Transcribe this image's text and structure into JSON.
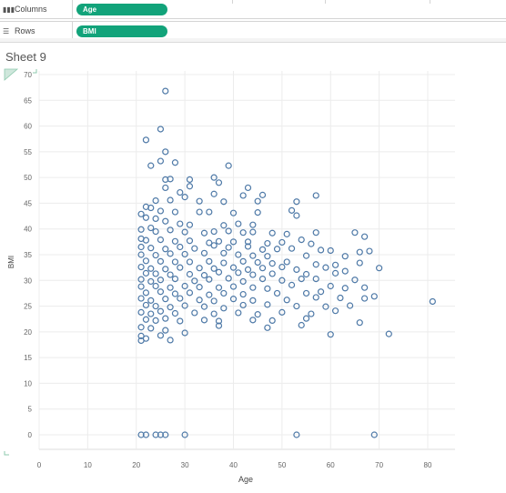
{
  "shelves": {
    "columns": {
      "label": "Columns",
      "icon": "columns-icon",
      "pill": "Age"
    },
    "rows": {
      "label": "Rows",
      "icon": "rows-icon",
      "pill": "BMI"
    }
  },
  "sheet": {
    "title": "Sheet 9"
  },
  "colors": {
    "pill": "#12a37a",
    "marker": "#4e79a7",
    "grid": "#ececec"
  },
  "chart_data": {
    "type": "scatter",
    "title": "",
    "xlabel": "Age",
    "ylabel": "BMI",
    "xlim": [
      0,
      85
    ],
    "ylim": [
      -3,
      70
    ],
    "xticks": [
      0,
      10,
      20,
      30,
      40,
      50,
      60,
      70,
      80
    ],
    "yticks": [
      0,
      5,
      10,
      15,
      20,
      25,
      30,
      35,
      40,
      45,
      50,
      55,
      60,
      65,
      70
    ],
    "grid": true,
    "marker": "open-circle",
    "series": [
      {
        "points": [
          [
            21,
            0
          ],
          [
            22,
            0
          ],
          [
            24,
            0
          ],
          [
            25,
            0
          ],
          [
            26,
            0
          ],
          [
            30,
            0
          ],
          [
            53,
            0
          ],
          [
            69,
            0
          ],
          [
            26,
            66.8
          ],
          [
            25,
            59.4
          ],
          [
            22,
            57.3
          ],
          [
            26,
            55
          ],
          [
            25,
            53.2
          ],
          [
            28,
            52.9
          ],
          [
            23,
            52.3
          ],
          [
            39,
            52.3
          ],
          [
            26,
            49.6
          ],
          [
            27,
            49.7
          ],
          [
            31,
            49.6
          ],
          [
            36,
            50
          ],
          [
            37,
            49
          ],
          [
            31,
            48.3
          ],
          [
            43,
            48
          ],
          [
            26,
            48
          ],
          [
            29,
            47.1
          ],
          [
            30,
            46.2
          ],
          [
            36,
            46.8
          ],
          [
            42,
            46.5
          ],
          [
            46,
            46.6
          ],
          [
            57,
            46.5
          ],
          [
            24,
            45.5
          ],
          [
            27,
            45.6
          ],
          [
            33,
            45.4
          ],
          [
            38,
            45.3
          ],
          [
            45,
            45.4
          ],
          [
            53,
            45.3
          ],
          [
            22,
            44.3
          ],
          [
            23,
            44.1
          ],
          [
            25,
            43.5
          ],
          [
            28,
            43.3
          ],
          [
            33,
            43.3
          ],
          [
            35,
            43.3
          ],
          [
            40,
            43.1
          ],
          [
            45,
            43.2
          ],
          [
            52,
            43.6
          ],
          [
            21,
            42.9
          ],
          [
            22,
            42.2
          ],
          [
            24,
            42
          ],
          [
            26,
            41.5
          ],
          [
            29,
            41
          ],
          [
            31,
            40.8
          ],
          [
            38,
            40.7
          ],
          [
            41,
            41
          ],
          [
            44,
            40.8
          ],
          [
            53,
            42.6
          ],
          [
            21,
            39.9
          ],
          [
            23,
            40.2
          ],
          [
            24,
            39.5
          ],
          [
            27,
            39.8
          ],
          [
            30,
            39.4
          ],
          [
            34,
            39.2
          ],
          [
            36,
            39.5
          ],
          [
            39,
            39.6
          ],
          [
            42,
            39.3
          ],
          [
            44,
            39.4
          ],
          [
            48,
            39.2
          ],
          [
            51,
            39
          ],
          [
            57,
            39.3
          ],
          [
            65,
            39.3
          ],
          [
            67,
            38.5
          ],
          [
            21,
            38.1
          ],
          [
            22,
            37.8
          ],
          [
            25,
            37.9
          ],
          [
            28,
            37.6
          ],
          [
            31,
            37.7
          ],
          [
            35,
            37.3
          ],
          [
            37,
            37.6
          ],
          [
            40,
            37.5
          ],
          [
            43,
            37.5
          ],
          [
            47,
            37.2
          ],
          [
            50,
            37.4
          ],
          [
            54,
            37.9
          ],
          [
            56,
            37.1
          ],
          [
            21,
            36.5
          ],
          [
            23,
            36.3
          ],
          [
            26,
            36.1
          ],
          [
            29,
            36.5
          ],
          [
            32,
            36.2
          ],
          [
            36,
            36.8
          ],
          [
            39,
            36.4
          ],
          [
            43,
            36.6
          ],
          [
            46,
            36
          ],
          [
            49,
            36.1
          ],
          [
            52,
            36.2
          ],
          [
            58,
            35.9
          ],
          [
            60,
            35.8
          ],
          [
            66,
            35.5
          ],
          [
            68,
            35.7
          ],
          [
            21,
            35
          ],
          [
            24,
            34.9
          ],
          [
            27,
            35.2
          ],
          [
            30,
            35.1
          ],
          [
            34,
            35.3
          ],
          [
            38,
            35.3
          ],
          [
            41,
            35
          ],
          [
            44,
            34.8
          ],
          [
            47,
            34.7
          ],
          [
            55,
            34.8
          ],
          [
            63,
            34.7
          ],
          [
            22,
            33.8
          ],
          [
            25,
            33.7
          ],
          [
            28,
            33.6
          ],
          [
            31,
            33.6
          ],
          [
            35,
            33.7
          ],
          [
            38,
            33.4
          ],
          [
            42,
            33.7
          ],
          [
            45,
            33.5
          ],
          [
            48,
            33.3
          ],
          [
            51,
            33.6
          ],
          [
            57,
            33.1
          ],
          [
            61,
            33
          ],
          [
            66,
            33.4
          ],
          [
            21,
            32.6
          ],
          [
            23,
            32.3
          ],
          [
            26,
            32.2
          ],
          [
            29,
            32.5
          ],
          [
            33,
            32.4
          ],
          [
            36,
            32.3
          ],
          [
            40,
            32.5
          ],
          [
            43,
            32.1
          ],
          [
            46,
            32.4
          ],
          [
            50,
            32.6
          ],
          [
            53,
            32.1
          ],
          [
            59,
            32.5
          ],
          [
            70,
            32.4
          ],
          [
            63,
            31.8
          ],
          [
            22,
            31.4
          ],
          [
            24,
            31.3
          ],
          [
            27,
            31.1
          ],
          [
            31,
            31.2
          ],
          [
            34,
            31
          ],
          [
            37,
            31.6
          ],
          [
            41,
            31.5
          ],
          [
            44,
            31.1
          ],
          [
            48,
            31.3
          ],
          [
            55,
            31.2
          ],
          [
            61,
            31.4
          ],
          [
            21,
            30.2
          ],
          [
            23,
            29.8
          ],
          [
            25,
            30.1
          ],
          [
            28,
            30.3
          ],
          [
            32,
            29.9
          ],
          [
            35,
            30.2
          ],
          [
            39,
            30.4
          ],
          [
            42,
            29.8
          ],
          [
            46,
            30.3
          ],
          [
            50,
            30
          ],
          [
            54,
            30.3
          ],
          [
            57,
            30.3
          ],
          [
            65,
            30.1
          ],
          [
            21,
            28.8
          ],
          [
            24,
            28.9
          ],
          [
            27,
            28.6
          ],
          [
            30,
            28.9
          ],
          [
            33,
            28.7
          ],
          [
            37,
            28.6
          ],
          [
            40,
            28.8
          ],
          [
            44,
            28.6
          ],
          [
            47,
            28.4
          ],
          [
            52,
            29.1
          ],
          [
            60,
            28.9
          ],
          [
            63,
            28.5
          ],
          [
            67,
            28.6
          ],
          [
            22,
            27.6
          ],
          [
            25,
            27.8
          ],
          [
            28,
            27.4
          ],
          [
            31,
            27.6
          ],
          [
            35,
            27.2
          ],
          [
            38,
            27.5
          ],
          [
            42,
            27.3
          ],
          [
            49,
            27.5
          ],
          [
            55,
            27.5
          ],
          [
            58,
            27.8
          ],
          [
            69,
            26.9
          ],
          [
            21,
            26.5
          ],
          [
            23,
            26.1
          ],
          [
            26,
            26.4
          ],
          [
            29,
            26.5
          ],
          [
            33,
            26.2
          ],
          [
            36,
            26
          ],
          [
            40,
            26.4
          ],
          [
            44,
            26.1
          ],
          [
            51,
            26.2
          ],
          [
            57,
            26.7
          ],
          [
            62,
            26.6
          ],
          [
            67,
            26.5
          ],
          [
            81,
            25.9
          ],
          [
            22,
            25.2
          ],
          [
            24,
            25
          ],
          [
            27,
            24.8
          ],
          [
            30,
            25.1
          ],
          [
            34,
            24.9
          ],
          [
            38,
            24.6
          ],
          [
            42,
            25.2
          ],
          [
            47,
            25.3
          ],
          [
            53,
            25
          ],
          [
            59,
            24.9
          ],
          [
            64,
            25.1
          ],
          [
            21,
            23.8
          ],
          [
            23,
            23.5
          ],
          [
            25,
            24
          ],
          [
            28,
            23.6
          ],
          [
            32,
            23.7
          ],
          [
            36,
            23.5
          ],
          [
            41,
            23.7
          ],
          [
            45,
            23.4
          ],
          [
            50,
            23.8
          ],
          [
            56,
            23.5
          ],
          [
            61,
            24.1
          ],
          [
            22,
            22.4
          ],
          [
            24,
            22.2
          ],
          [
            26,
            22.6
          ],
          [
            29,
            22.1
          ],
          [
            34,
            22.3
          ],
          [
            37,
            22.1
          ],
          [
            44,
            22.3
          ],
          [
            48,
            22.2
          ],
          [
            55,
            22.6
          ],
          [
            66,
            21.8
          ],
          [
            21,
            20.9
          ],
          [
            23,
            20.7
          ],
          [
            26,
            20.3
          ],
          [
            30,
            19.8
          ],
          [
            37,
            21.2
          ],
          [
            47,
            20.8
          ],
          [
            54,
            21.3
          ],
          [
            60,
            19.5
          ],
          [
            72,
            19.6
          ],
          [
            21,
            19.2
          ],
          [
            22,
            18.7
          ],
          [
            25,
            19.3
          ],
          [
            21,
            18.3
          ],
          [
            27,
            18.4
          ]
        ]
      }
    ]
  }
}
